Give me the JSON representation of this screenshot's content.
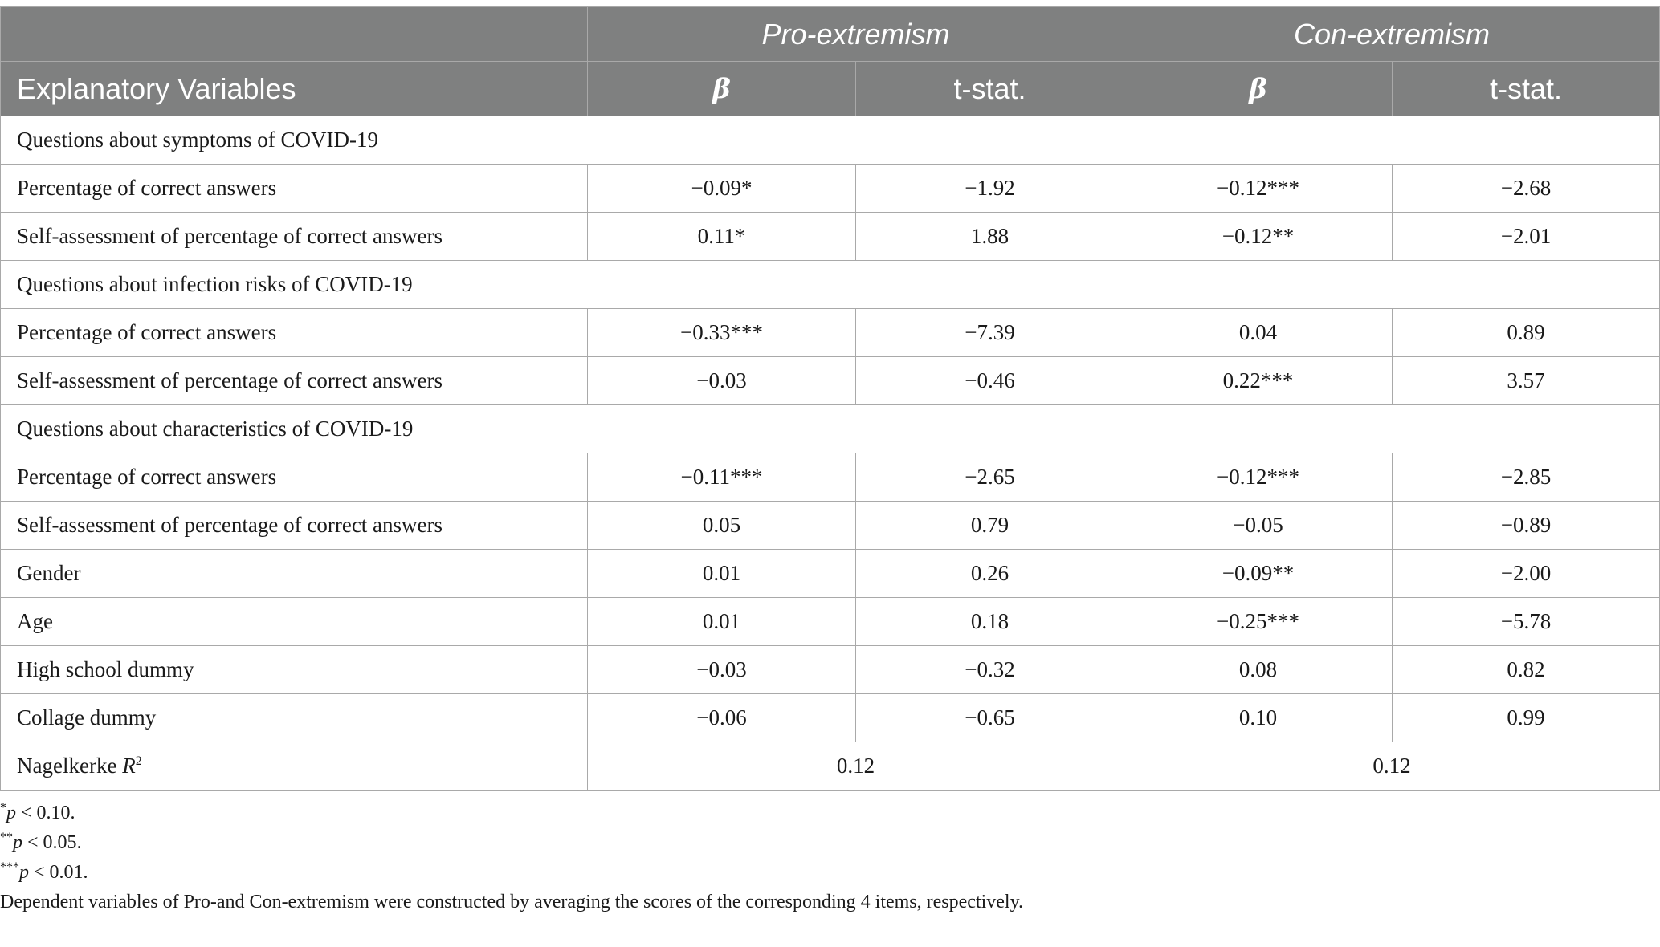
{
  "header": {
    "groups": [
      "Pro-extremism",
      "Con-extremism"
    ],
    "var_label": "Explanatory Variables",
    "beta": "β",
    "tstat": "t-stat."
  },
  "sections": [
    {
      "title": "Questions about symptoms of COVID-19",
      "rows": [
        {
          "label": "Percentage of correct answers",
          "values": [
            "−0.09*",
            "−1.92",
            "−0.12***",
            "−2.68"
          ]
        },
        {
          "label": "Self-assessment of percentage of correct answers",
          "values": [
            "0.11*",
            "1.88",
            "−0.12**",
            "−2.01"
          ]
        }
      ]
    },
    {
      "title": "Questions about infection risks of COVID-19",
      "rows": [
        {
          "label": "Percentage of correct answers",
          "values": [
            "−0.33***",
            "−7.39",
            "0.04",
            "0.89"
          ]
        },
        {
          "label": "Self-assessment of percentage of correct answers",
          "values": [
            "−0.03",
            "−0.46",
            "0.22***",
            "3.57"
          ]
        }
      ]
    },
    {
      "title": "Questions about characteristics of COVID-19",
      "rows": [
        {
          "label": "Percentage of correct answers",
          "values": [
            "−0.11***",
            "−2.65",
            "−0.12***",
            "−2.85"
          ]
        },
        {
          "label": "Self-assessment of percentage of correct answers",
          "values": [
            "0.05",
            "0.79",
            "−0.05",
            "−0.89"
          ]
        }
      ]
    }
  ],
  "controls": [
    {
      "label": "Gender",
      "values": [
        "0.01",
        "0.26",
        "−0.09**",
        "−2.00"
      ]
    },
    {
      "label": "Age",
      "values": [
        "0.01",
        "0.18",
        "−0.25***",
        "−5.78"
      ]
    },
    {
      "label": "High school dummy",
      "values": [
        "−0.03",
        "−0.32",
        "0.08",
        "0.82"
      ]
    },
    {
      "label": "Collage dummy",
      "values": [
        "−0.06",
        "−0.65",
        "0.10",
        "0.99"
      ]
    }
  ],
  "fit": {
    "label": "Nagelkerke",
    "symbol": "R",
    "power": "2",
    "pro": "0.12",
    "con": "0.12"
  },
  "notes": [
    {
      "stars": "*",
      "p": "p",
      "rest": " < 0.10."
    },
    {
      "stars": "**",
      "p": "p",
      "rest": " < 0.05."
    },
    {
      "stars": "***",
      "p": "p",
      "rest": " < 0.01."
    }
  ],
  "note_text": "Dependent variables of Pro-and Con-extremism were constructed by averaging the scores of the corresponding 4 items, respectively."
}
